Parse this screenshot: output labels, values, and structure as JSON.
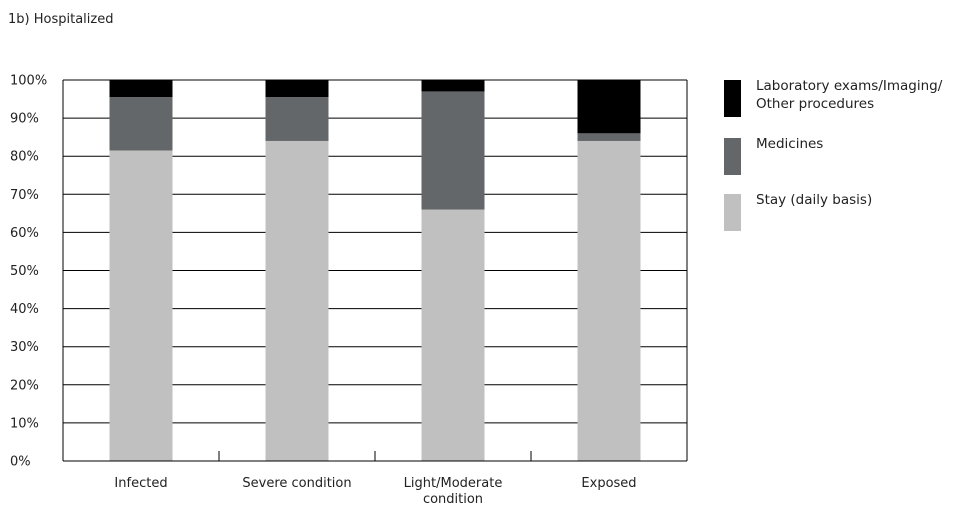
{
  "chart_data": {
    "type": "bar",
    "stacked": true,
    "title": "1b) Hospitalized",
    "categories": [
      "Infected",
      "Severe condition",
      "Light/Moderate condition",
      "Exposed"
    ],
    "category_lines": [
      [
        "Infected"
      ],
      [
        "Severe condition"
      ],
      [
        "Light/Moderate",
        "condition"
      ],
      [
        "Exposed"
      ]
    ],
    "series": [
      {
        "name": "Stay (daily basis)",
        "color": "#c0c0c0",
        "values": [
          81.5,
          84,
          66,
          84
        ]
      },
      {
        "name": "Medicines",
        "color": "#646769",
        "values": [
          14,
          11.5,
          31,
          2
        ]
      },
      {
        "name": "Laboratory exams/Imaging/ Other procedures",
        "name_lines": [
          "Laboratory exams/Imaging/",
          "Other procedures"
        ],
        "color": "#000000",
        "values": [
          4.5,
          4.5,
          3,
          14
        ]
      }
    ],
    "ylim": [
      0,
      100
    ],
    "yticks": [
      "0%",
      "10%",
      "20%",
      "30%",
      "40%",
      "50%",
      "60%",
      "70%",
      "80%",
      "90%",
      "100%"
    ],
    "grid": true,
    "legend_position": "right"
  }
}
